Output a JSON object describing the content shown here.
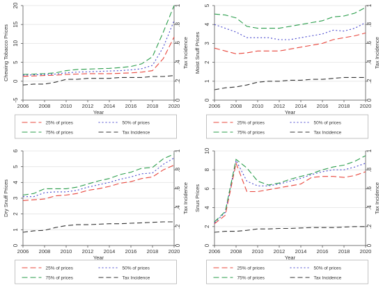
{
  "chart_data": [
    {
      "type": "line",
      "ylabel": "Chewing Tobacco Prices",
      "y2label": "Tax Incidence",
      "xlabel": "Year",
      "xlim": [
        2006,
        2020
      ],
      "ylim": [
        -5,
        20
      ],
      "y2lim": [
        0,
        1
      ],
      "xticks": [
        2006,
        2008,
        2010,
        2012,
        2014,
        2016,
        2018,
        2020
      ],
      "yticks": [
        -5,
        0,
        5,
        10,
        15,
        20
      ],
      "y2ticks": [
        0,
        0.2,
        0.4,
        0.6,
        0.8,
        1
      ],
      "y2ticklabels": [
        "0",
        ".2",
        ".4",
        ".6",
        ".8",
        "1"
      ],
      "grid": true,
      "legend": "bottom",
      "series": [
        {
          "name": "25% of prices",
          "axis": "left",
          "color": "#e8443a",
          "dash": "8,4",
          "x": [
            2006,
            2007,
            2008,
            2009,
            2010,
            2011,
            2012,
            2013,
            2014,
            2015,
            2016,
            2017,
            2018,
            2019,
            2020
          ],
          "values": [
            1.3,
            1.4,
            1.5,
            1.6,
            1.8,
            1.9,
            2.0,
            2.0,
            2.0,
            2.1,
            2.2,
            2.4,
            2.8,
            6.0,
            11.7
          ]
        },
        {
          "name": "50% of prices",
          "axis": "left",
          "color": "#4444cc",
          "dash": "2,3",
          "x": [
            2006,
            2007,
            2008,
            2009,
            2010,
            2011,
            2012,
            2013,
            2014,
            2015,
            2016,
            2017,
            2018,
            2019,
            2020
          ],
          "values": [
            1.6,
            1.7,
            1.8,
            1.9,
            2.2,
            2.4,
            2.5,
            2.6,
            2.7,
            2.8,
            3.0,
            3.3,
            4.2,
            9.0,
            16.0
          ]
        },
        {
          "name": "75% of prices",
          "axis": "left",
          "color": "#2a9d4b",
          "dash": "8,4",
          "x": [
            2006,
            2007,
            2008,
            2009,
            2010,
            2011,
            2012,
            2013,
            2014,
            2015,
            2016,
            2017,
            2018,
            2019,
            2020
          ],
          "values": [
            1.8,
            1.9,
            2.0,
            2.2,
            2.8,
            3.1,
            3.2,
            3.3,
            3.4,
            3.6,
            3.9,
            4.6,
            6.5,
            13.0,
            20.0
          ]
        },
        {
          "name": "Tax Incidence",
          "axis": "right",
          "color": "#333333",
          "dash": "7,4",
          "x": [
            2006,
            2007,
            2008,
            2009,
            2010,
            2011,
            2012,
            2013,
            2014,
            2015,
            2016,
            2017,
            2018,
            2019,
            2020
          ],
          "values": [
            0.16,
            0.17,
            0.17,
            0.19,
            0.22,
            0.22,
            0.23,
            0.23,
            0.23,
            0.24,
            0.24,
            0.24,
            0.25,
            0.25,
            0.26
          ]
        }
      ]
    },
    {
      "type": "line",
      "ylabel": "Moist Snuff Prices",
      "y2label": "Tax Incidence",
      "xlabel": "Year",
      "xlim": [
        2006,
        2020
      ],
      "ylim": [
        0,
        5
      ],
      "y2lim": [
        0,
        1
      ],
      "xticks": [
        2006,
        2008,
        2010,
        2012,
        2014,
        2016,
        2018,
        2020
      ],
      "yticks": [
        0,
        1,
        2,
        3,
        4,
        5
      ],
      "y2ticks": [
        0,
        0.2,
        0.4,
        0.6,
        0.8,
        1
      ],
      "y2ticklabels": [
        "0",
        ".2",
        ".4",
        ".6",
        ".8",
        "1"
      ],
      "grid": true,
      "legend": "bottom",
      "series": [
        {
          "name": "25% of prices",
          "axis": "left",
          "color": "#e8443a",
          "dash": "8,4",
          "x": [
            2006,
            2007,
            2008,
            2009,
            2010,
            2011,
            2012,
            2013,
            2014,
            2015,
            2016,
            2017,
            2018,
            2019,
            2020
          ],
          "values": [
            2.75,
            2.6,
            2.45,
            2.5,
            2.6,
            2.6,
            2.6,
            2.7,
            2.8,
            2.9,
            3.0,
            3.2,
            3.3,
            3.4,
            3.55
          ]
        },
        {
          "name": "50% of prices",
          "axis": "left",
          "color": "#4444cc",
          "dash": "2,3",
          "x": [
            2006,
            2007,
            2008,
            2009,
            2010,
            2011,
            2012,
            2013,
            2014,
            2015,
            2016,
            2017,
            2018,
            2019,
            2020
          ],
          "values": [
            4.0,
            3.8,
            3.6,
            3.3,
            3.3,
            3.3,
            3.2,
            3.2,
            3.3,
            3.4,
            3.5,
            3.7,
            3.65,
            3.8,
            4.1
          ]
        },
        {
          "name": "75% of prices",
          "axis": "left",
          "color": "#2a9d4b",
          "dash": "8,4",
          "x": [
            2006,
            2007,
            2008,
            2009,
            2010,
            2011,
            2012,
            2013,
            2014,
            2015,
            2016,
            2017,
            2018,
            2019,
            2020
          ],
          "values": [
            4.55,
            4.5,
            4.35,
            3.9,
            3.8,
            3.8,
            3.8,
            3.9,
            4.0,
            4.1,
            4.2,
            4.4,
            4.45,
            4.6,
            4.9
          ]
        },
        {
          "name": "Tax Incidence",
          "axis": "right",
          "color": "#333333",
          "dash": "7,4",
          "x": [
            2006,
            2007,
            2008,
            2009,
            2010,
            2011,
            2012,
            2013,
            2014,
            2015,
            2016,
            2017,
            2018,
            2019,
            2020
          ],
          "values": [
            0.11,
            0.13,
            0.14,
            0.16,
            0.19,
            0.2,
            0.2,
            0.21,
            0.21,
            0.22,
            0.22,
            0.23,
            0.24,
            0.24,
            0.24
          ]
        }
      ]
    },
    {
      "type": "line",
      "ylabel": "Dry Snuff Prices",
      "y2label": "Tax Incidence",
      "xlabel": "Year",
      "xlim": [
        2006,
        2020
      ],
      "ylim": [
        0,
        6
      ],
      "y2lim": [
        0,
        1
      ],
      "xticks": [
        2006,
        2008,
        2010,
        2012,
        2014,
        2016,
        2018,
        2020
      ],
      "yticks": [
        0,
        1,
        2,
        3,
        4,
        5,
        6
      ],
      "y2ticks": [
        0,
        0.2,
        0.4,
        0.6,
        0.8,
        1
      ],
      "y2ticklabels": [
        "0",
        ".2",
        ".4",
        ".6",
        ".8",
        "1"
      ],
      "grid": true,
      "legend": "bottom",
      "series": [
        {
          "name": "25% of prices",
          "axis": "left",
          "color": "#e8443a",
          "dash": "8,4",
          "x": [
            2006,
            2007,
            2008,
            2009,
            2010,
            2011,
            2012,
            2013,
            2014,
            2015,
            2016,
            2017,
            2018,
            2019,
            2020
          ],
          "values": [
            2.85,
            2.9,
            2.95,
            3.15,
            3.2,
            3.3,
            3.5,
            3.6,
            3.75,
            3.95,
            4.05,
            4.25,
            4.35,
            4.8,
            5.1
          ]
        },
        {
          "name": "50% of prices",
          "axis": "left",
          "color": "#4444cc",
          "dash": "2,3",
          "x": [
            2006,
            2007,
            2008,
            2009,
            2010,
            2011,
            2012,
            2013,
            2014,
            2015,
            2016,
            2017,
            2018,
            2019,
            2020
          ],
          "values": [
            3.1,
            3.1,
            3.35,
            3.4,
            3.4,
            3.5,
            3.7,
            3.85,
            4.0,
            4.2,
            4.35,
            4.55,
            4.6,
            5.15,
            5.55
          ]
        },
        {
          "name": "75% of prices",
          "axis": "left",
          "color": "#2a9d4b",
          "dash": "8,4",
          "x": [
            2006,
            2007,
            2008,
            2009,
            2010,
            2011,
            2012,
            2013,
            2014,
            2015,
            2016,
            2017,
            2018,
            2019,
            2020
          ],
          "values": [
            3.2,
            3.3,
            3.6,
            3.6,
            3.6,
            3.7,
            3.9,
            4.1,
            4.25,
            4.5,
            4.65,
            4.9,
            4.95,
            5.5,
            5.8
          ]
        },
        {
          "name": "Tax Incidence",
          "axis": "right",
          "color": "#333333",
          "dash": "7,4",
          "x": [
            2006,
            2007,
            2008,
            2009,
            2010,
            2011,
            2012,
            2013,
            2014,
            2015,
            2016,
            2017,
            2018,
            2019,
            2020
          ],
          "values": [
            0.14,
            0.155,
            0.16,
            0.19,
            0.21,
            0.22,
            0.22,
            0.225,
            0.23,
            0.23,
            0.235,
            0.24,
            0.245,
            0.25,
            0.25
          ]
        }
      ]
    },
    {
      "type": "line",
      "ylabel": "Snus Prices",
      "y2label": "Tax Incidence",
      "xlabel": "Year",
      "xlim": [
        2006,
        2020
      ],
      "ylim": [
        0,
        10
      ],
      "y2lim": [
        0,
        1
      ],
      "xticks": [
        2006,
        2008,
        2010,
        2012,
        2014,
        2016,
        2018,
        2020
      ],
      "yticks": [
        0,
        2,
        4,
        6,
        8,
        10
      ],
      "y2ticks": [
        0,
        0.2,
        0.4,
        0.6,
        0.8,
        1
      ],
      "y2ticklabels": [
        "0",
        ".2",
        ".4",
        ".6",
        ".8",
        "1"
      ],
      "grid": true,
      "legend": "bottom",
      "series": [
        {
          "name": "25% of prices",
          "axis": "left",
          "color": "#e8443a",
          "dash": "8,4",
          "x": [
            2006,
            2007,
            2008,
            2009,
            2010,
            2011,
            2012,
            2013,
            2014,
            2015,
            2016,
            2017,
            2018,
            2019,
            2020
          ],
          "values": [
            2.3,
            3.2,
            8.7,
            5.7,
            5.7,
            5.9,
            6.1,
            6.3,
            6.5,
            7.2,
            7.3,
            7.3,
            7.2,
            7.4,
            7.8
          ]
        },
        {
          "name": "50% of prices",
          "axis": "left",
          "color": "#4444cc",
          "dash": "2,3",
          "x": [
            2006,
            2007,
            2008,
            2009,
            2010,
            2011,
            2012,
            2013,
            2014,
            2015,
            2016,
            2017,
            2018,
            2019,
            2020
          ],
          "values": [
            2.4,
            3.5,
            9.0,
            6.8,
            6.3,
            6.3,
            6.5,
            6.8,
            7.1,
            7.5,
            7.8,
            8.0,
            8.0,
            8.3,
            8.7
          ]
        },
        {
          "name": "75% of prices",
          "axis": "left",
          "color": "#2a9d4b",
          "dash": "8,4",
          "x": [
            2006,
            2007,
            2008,
            2009,
            2010,
            2011,
            2012,
            2013,
            2014,
            2015,
            2016,
            2017,
            2018,
            2019,
            2020
          ],
          "values": [
            2.5,
            3.6,
            9.1,
            8.2,
            6.8,
            6.4,
            6.6,
            7.0,
            7.3,
            7.6,
            8.0,
            8.3,
            8.5,
            8.9,
            9.5
          ]
        },
        {
          "name": "Tax Incidence",
          "axis": "right",
          "color": "#333333",
          "dash": "7,4",
          "x": [
            2006,
            2007,
            2008,
            2009,
            2010,
            2011,
            2012,
            2013,
            2014,
            2015,
            2016,
            2017,
            2018,
            2019,
            2020
          ],
          "values": [
            0.14,
            0.15,
            0.15,
            0.16,
            0.175,
            0.175,
            0.18,
            0.18,
            0.185,
            0.19,
            0.19,
            0.19,
            0.195,
            0.2,
            0.2
          ]
        }
      ]
    }
  ]
}
